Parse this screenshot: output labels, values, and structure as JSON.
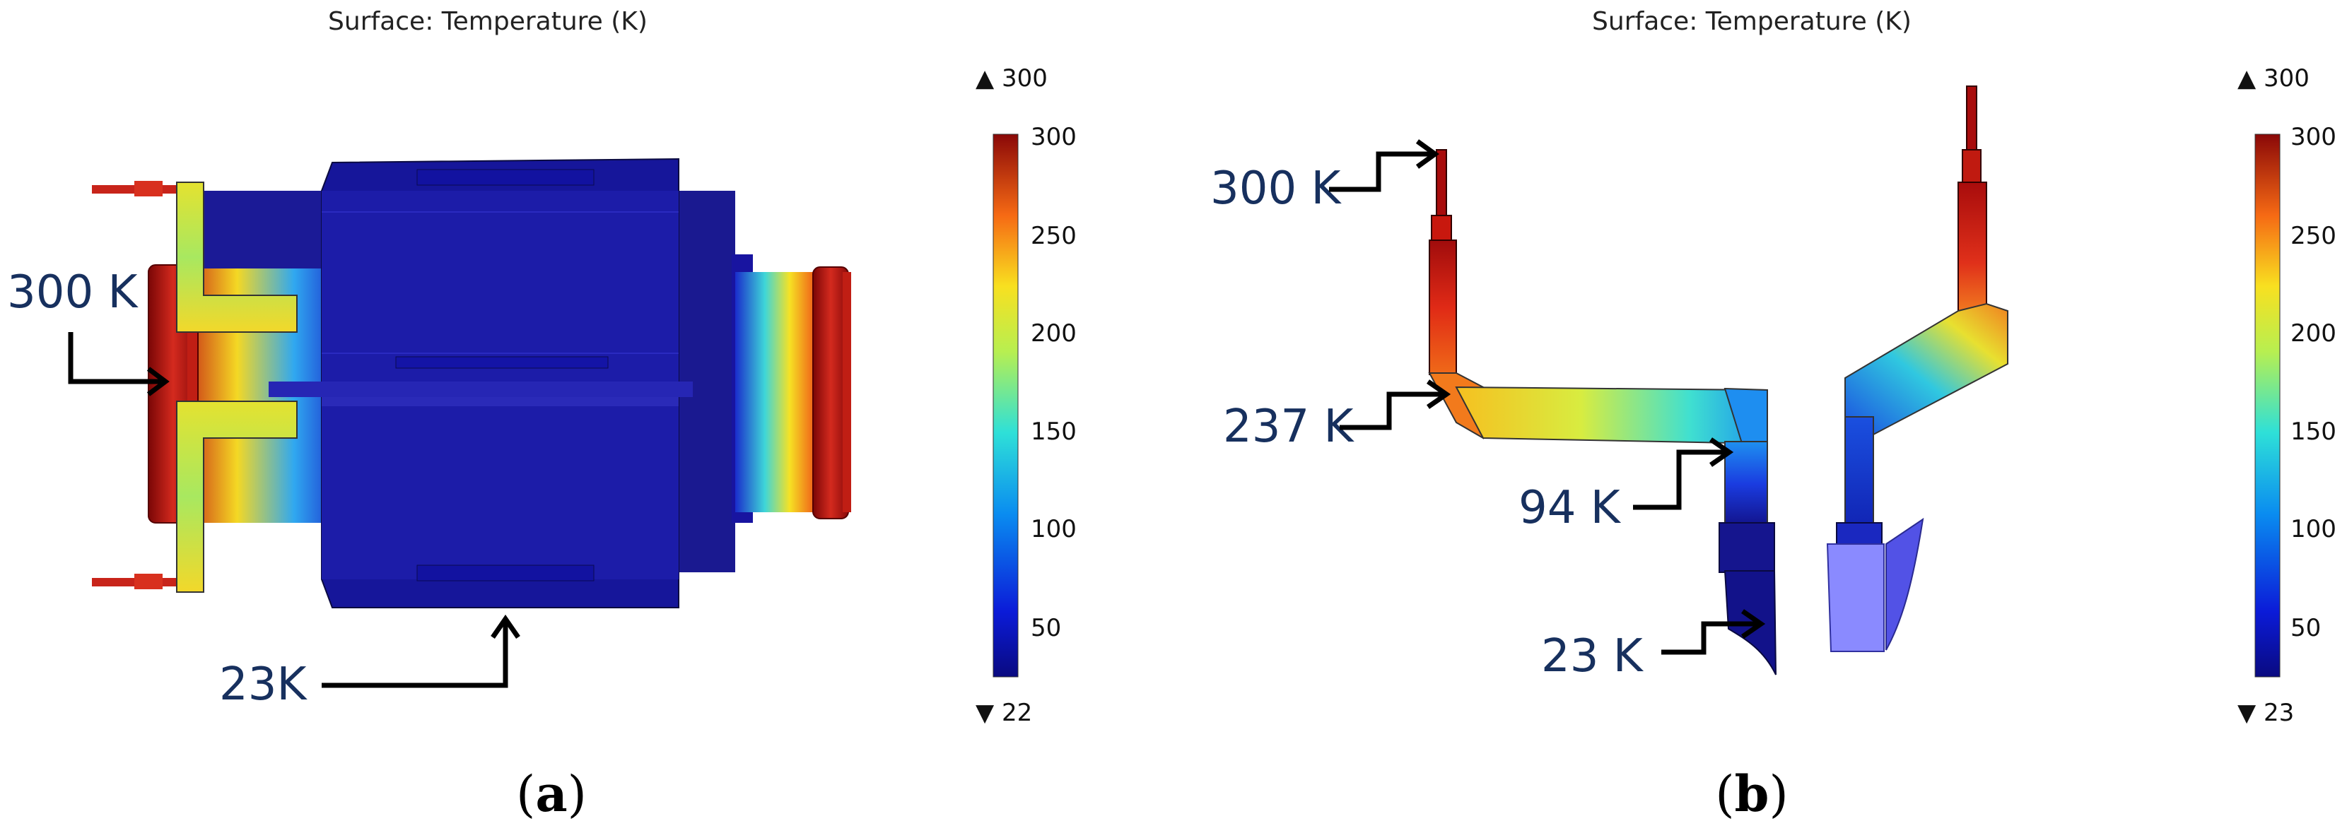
{
  "panel_a": {
    "title": "Surface: Temperature (K)",
    "colorbar": {
      "max_label": "▲ 300",
      "min_label": "▼ 22",
      "ticks": [
        "300",
        "250",
        "200",
        "150",
        "100",
        "50"
      ]
    },
    "annotations": [
      "300 K",
      "23K"
    ],
    "label": {
      "open": "(",
      "letter": "a",
      "close": ")"
    }
  },
  "panel_b": {
    "title": "Surface: Temperature (K)",
    "colorbar": {
      "max_label": "▲ 300",
      "min_label": "▼ 23",
      "ticks": [
        "300",
        "250",
        "200",
        "150",
        "100",
        "50"
      ]
    },
    "annotations": [
      "300 K",
      "237 K",
      "94 K",
      "23 K"
    ],
    "label": {
      "open": "(",
      "letter": "b",
      "close": ")"
    }
  },
  "colors": {
    "hot": "#a50d0d",
    "warm": "#f0641c",
    "mid": "#f5e62a",
    "cool": "#3fd0d8",
    "cold": "#1838c8",
    "coldest": "#12127a",
    "annotation_text": "#17305e"
  }
}
